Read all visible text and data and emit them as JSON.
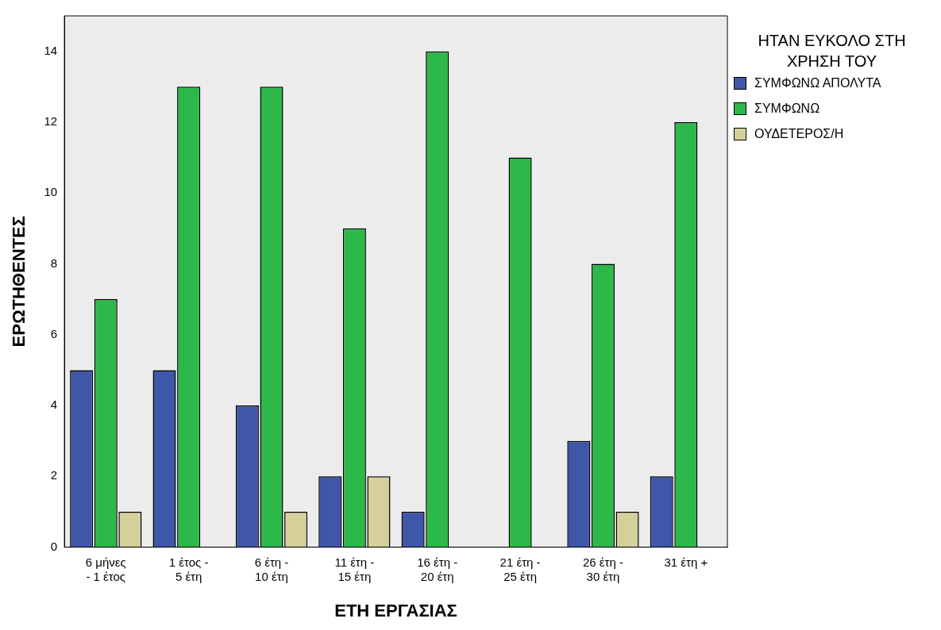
{
  "chart_data": {
    "type": "bar",
    "xlabel": "ΕΤΗ ΕΡΓΑΣΙΑΣ",
    "ylabel": "ΕΡΩΤΗΘΕΝΤΕΣ",
    "legend_title": "ΗΤΑΝ ΕΥΚΟΛΟ ΣΤΗ ΧΡΗΣΗ ΤΟΥ",
    "categories": [
      "6 μήνες - 1 έτος",
      "1 έτος - 5 έτη",
      "6 έτη - 10 έτη",
      "11 έτη - 15 έτη",
      "16 έτη - 20 έτη",
      "21 έτη - 25 έτη",
      "26 έτη - 30 έτη",
      "31 έτη +"
    ],
    "series": [
      {
        "name": "ΣΥΜΦΩΝΩ ΑΠΟΛΥΤΑ",
        "color": "#3f57a8",
        "values": [
          5,
          5,
          4,
          2,
          1,
          null,
          3,
          2
        ]
      },
      {
        "name": "ΣΥΜΦΩΝΩ",
        "color": "#2db84a",
        "values": [
          7,
          13,
          13,
          9,
          14,
          11,
          8,
          12
        ]
      },
      {
        "name": "ΟΥΔΕΤΕΡΟΣ/Η",
        "color": "#d5d09a",
        "values": [
          1,
          null,
          1,
          2,
          null,
          null,
          1,
          null
        ]
      }
    ],
    "ylim": [
      0,
      15
    ],
    "yticks": [
      0,
      2,
      4,
      6,
      8,
      10,
      12,
      14
    ],
    "grid": false,
    "legend": "right"
  }
}
